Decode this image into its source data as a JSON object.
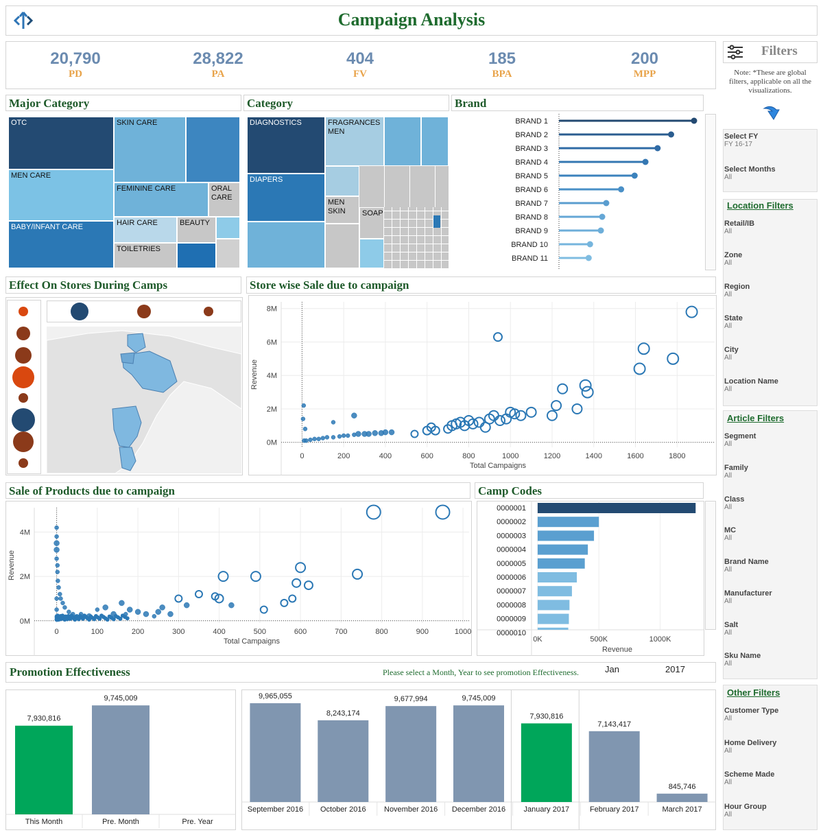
{
  "header": {
    "title": "Campaign Analysis",
    "logo_icon": "arrows-logo-icon"
  },
  "kpis": [
    {
      "value": "20,790",
      "label": "PD"
    },
    {
      "value": "28,822",
      "label": "PA"
    },
    {
      "value": "404",
      "label": "FV"
    },
    {
      "value": "185",
      "label": "BPA"
    },
    {
      "value": "200",
      "label": "MPP"
    }
  ],
  "sections": {
    "major_category": "Major Category",
    "category": "Category",
    "brand": "Brand",
    "effect_stores": "Effect On Stores During Camps",
    "store_sale": "Store wise Sale due to campaign",
    "product_sale": "Sale of Products due to campaign",
    "camp_codes": "Camp Codes",
    "promotion": "Promotion Effectiveness"
  },
  "major_category": [
    "OTC",
    "SKIN CARE",
    "MEN CARE",
    "FEMININE CARE",
    "ORAL CARE",
    "BABY/INFANT CARE",
    "HAIR CARE",
    "BEAUTY",
    "TOILETRIES"
  ],
  "category": [
    "DIAGNOSTICS",
    "FRAGRANCES MEN",
    "DIAPERS",
    "MEN SKIN",
    "SOAP"
  ],
  "filters": {
    "title": "Filters",
    "icon": "sliders-icon",
    "note": "Note: *These are global filters, applicable on all the visualizations.",
    "fy_label": "Select FY",
    "fy_value": "FY 16-17",
    "months_label": "Select Months",
    "months_value": "All",
    "location_title": "Location Filters",
    "location": [
      {
        "label": "Retail/IB",
        "value": "All"
      },
      {
        "label": "Zone",
        "value": "All"
      },
      {
        "label": "Region",
        "value": "All"
      },
      {
        "label": "State",
        "value": "All"
      },
      {
        "label": "City",
        "value": "All"
      },
      {
        "label": "Location Name",
        "value": "All"
      }
    ],
    "article_title": "Article Filters",
    "article": [
      {
        "label": "Segment",
        "value": "All"
      },
      {
        "label": "Family",
        "value": "All"
      },
      {
        "label": "Class",
        "value": "All"
      },
      {
        "label": "MC",
        "value": "All"
      },
      {
        "label": "Brand Name",
        "value": "All"
      },
      {
        "label": "Manufacturer",
        "value": "All"
      },
      {
        "label": "Salt",
        "value": "All"
      },
      {
        "label": "Sku Name",
        "value": "All"
      }
    ],
    "other_title": "Other Filters",
    "other": [
      {
        "label": "Customer Type",
        "value": "All"
      },
      {
        "label": "Home Delivery",
        "value": "All"
      },
      {
        "label": "Scheme Made",
        "value": "All"
      },
      {
        "label": "Hour Group",
        "value": "All"
      }
    ]
  },
  "promotion": {
    "hint": "Please select a Month, Year to see promotion Effectiveness.",
    "month": "Jan",
    "year": "2017"
  },
  "chart_data": [
    {
      "id": "brand",
      "type": "lollipop",
      "categories": [
        "BRAND 1",
        "BRAND 2",
        "BRAND 3",
        "BRAND 4",
        "BRAND 5",
        "BRAND 6",
        "BRAND 7",
        "BRAND 8",
        "BRAND 9",
        "BRAND 10",
        "BRAND 11"
      ],
      "values": [
        100,
        83,
        73,
        64,
        56,
        46,
        35,
        32,
        31,
        23,
        22
      ],
      "xlabel": "",
      "ylabel": ""
    },
    {
      "id": "store_sale",
      "type": "scatter",
      "title": "Store wise Sale due to campaign",
      "xlabel": "Total Campaigns",
      "ylabel": "Revenue",
      "xlim": [
        -100,
        1980
      ],
      "ylim": [
        -0.3,
        8.4
      ],
      "xticks": [
        "0",
        "200",
        "400",
        "600",
        "800",
        "1000",
        "1200",
        "1400",
        "1600",
        "1800"
      ],
      "yticks": [
        "0M",
        "2M",
        "4M",
        "6M",
        "8M"
      ],
      "x": [
        10,
        20,
        40,
        60,
        80,
        100,
        120,
        150,
        180,
        200,
        220,
        250,
        270,
        300,
        320,
        350,
        380,
        400,
        430,
        540,
        600,
        620,
        640,
        700,
        720,
        740,
        760,
        780,
        800,
        820,
        850,
        880,
        900,
        920,
        950,
        980,
        1000,
        1020,
        1050,
        1100,
        1200,
        1220,
        1250,
        1320,
        1360,
        1370,
        1620,
        1640,
        1780,
        1870,
        940,
        5,
        8,
        150,
        250,
        15
      ],
      "y": [
        0.1,
        0.1,
        0.15,
        0.2,
        0.2,
        0.25,
        0.3,
        0.3,
        0.35,
        0.4,
        0.4,
        0.45,
        0.5,
        0.5,
        0.5,
        0.55,
        0.55,
        0.6,
        0.6,
        0.5,
        0.7,
        0.9,
        0.7,
        0.8,
        1.0,
        1.1,
        1.2,
        1.0,
        1.3,
        1.1,
        1.2,
        0.9,
        1.4,
        1.6,
        1.3,
        1.4,
        1.8,
        1.7,
        1.6,
        1.8,
        1.6,
        2.2,
        3.2,
        2.0,
        3.4,
        3.0,
        4.4,
        5.6,
        5.0,
        7.8,
        6.3,
        1.4,
        2.2,
        1.2,
        1.6,
        0.8
      ],
      "size": [
        3,
        3,
        3,
        3,
        3,
        3,
        3,
        3,
        3,
        3,
        3,
        3,
        4,
        4,
        4,
        4,
        4,
        4,
        4,
        5,
        6,
        6,
        6,
        6,
        7,
        7,
        7,
        7,
        7,
        7,
        7,
        7,
        7,
        7,
        7,
        7,
        7,
        7,
        7,
        7,
        7,
        7,
        7,
        7,
        8,
        8,
        8,
        8,
        8,
        8,
        6,
        3,
        3,
        3,
        4,
        3
      ]
    },
    {
      "id": "product_sale",
      "type": "scatter",
      "title": "Sale of Products due to campaign",
      "xlabel": "Total Campaigns",
      "ylabel": "Revenue",
      "xlim": [
        -55,
        1015
      ],
      "ylim": [
        -0.1,
        5.1
      ],
      "xticks": [
        "0",
        "100",
        "200",
        "300",
        "400",
        "500",
        "600",
        "700",
        "800",
        "900",
        "1000"
      ],
      "yticks": [
        "0M",
        "2M",
        "4M"
      ],
      "x": [
        0,
        0,
        0,
        0,
        0,
        2,
        2,
        3,
        5,
        8,
        10,
        15,
        20,
        30,
        40,
        50,
        60,
        80,
        100,
        120,
        140,
        160,
        170,
        180,
        200,
        220,
        240,
        250,
        260,
        280,
        300,
        320,
        350,
        390,
        400,
        410,
        430,
        490,
        510,
        560,
        580,
        590,
        600,
        620,
        740,
        780,
        950,
        0,
        0,
        2,
        1
      ],
      "y": [
        4.2,
        3.8,
        3.5,
        3.2,
        2.8,
        2.5,
        2.2,
        1.8,
        1.5,
        1.2,
        1.0,
        0.8,
        0.6,
        0.4,
        0.3,
        0.2,
        0.3,
        0.2,
        0.5,
        0.6,
        0.3,
        0.8,
        0.3,
        0.5,
        0.4,
        0.3,
        0.2,
        0.4,
        0.6,
        0.3,
        1.0,
        0.7,
        1.2,
        1.1,
        1.0,
        2.0,
        0.7,
        2.0,
        0.5,
        0.8,
        1.0,
        1.7,
        2.4,
        1.6,
        2.1,
        4.9,
        4.9,
        1.0,
        0.5,
        0.1,
        0.05
      ],
      "size": [
        3,
        3,
        4,
        4,
        3,
        3,
        3,
        3,
        3,
        3,
        3,
        3,
        3,
        3,
        3,
        3,
        3,
        4,
        3,
        4,
        4,
        4,
        3,
        4,
        4,
        4,
        3,
        4,
        4,
        4,
        5,
        4,
        5,
        5,
        6,
        7,
        4,
        7,
        5,
        5,
        5,
        6,
        7,
        6,
        7,
        10,
        10,
        3,
        3,
        3,
        3
      ]
    },
    {
      "id": "camp_codes",
      "type": "bar",
      "orientation": "horizontal",
      "title": "Camp Codes",
      "categories": [
        "0000001",
        "0000002",
        "0000003",
        "0000004",
        "0000005",
        "0000006",
        "0000007",
        "0000008",
        "0000009",
        "0000010"
      ],
      "values": [
        1290,
        500,
        460,
        410,
        385,
        320,
        280,
        260,
        255,
        250
      ],
      "xlabel": "Revenue",
      "xticks": [
        "0K",
        "500K",
        "1000K"
      ],
      "xlim": [
        -50,
        1350
      ]
    },
    {
      "id": "promo_compare",
      "type": "bar",
      "categories": [
        "This Month",
        "Pre. Month",
        "Pre. Year"
      ],
      "values": [
        7930816,
        9745009,
        0
      ],
      "labels": [
        "7,930,816",
        "9,745,009",
        ""
      ],
      "colors": [
        "#00a65a",
        "#8096b0",
        "#8096b0"
      ]
    },
    {
      "id": "promo_monthly",
      "type": "bar",
      "categories": [
        "September 2016",
        "October 2016",
        "November 2016",
        "December 2016",
        "January 2017",
        "February 2017",
        "March 2017"
      ],
      "values": [
        9965055,
        8243174,
        9677994,
        9745009,
        7930816,
        7143417,
        845746
      ],
      "labels": [
        "9,965,055",
        "8,243,174",
        "9,677,994",
        "9,745,009",
        "7,930,816",
        "7,143,417",
        "845,746"
      ],
      "colors": [
        "#8096b0",
        "#8096b0",
        "#8096b0",
        "#8096b0",
        "#00a65a",
        "#8096b0",
        "#8096b0"
      ]
    }
  ]
}
